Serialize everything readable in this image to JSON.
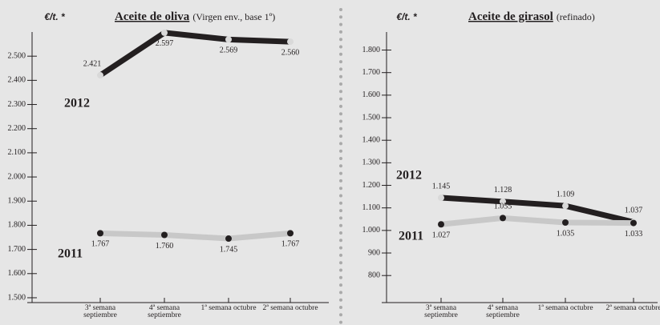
{
  "chart_data": [
    {
      "type": "line",
      "unit": "€/t. *",
      "title": "Aceite de oliva",
      "subtitle": "(Virgen env., base 1º)",
      "categories": [
        "3ª semana septiembre",
        "4ª semana septiembre",
        "1ª semana octubre",
        "2ª semana octubre"
      ],
      "ylim": [
        1480,
        2600
      ],
      "yticks": [
        {
          "value": 1500,
          "label": "1.500"
        },
        {
          "value": 1600,
          "label": "1.600"
        },
        {
          "value": 1700,
          "label": "1.700"
        },
        {
          "value": 1800,
          "label": "1.800"
        },
        {
          "value": 1900,
          "label": "1.900"
        },
        {
          "value": 2000,
          "label": "2.000"
        },
        {
          "value": 2100,
          "label": "2.100"
        },
        {
          "value": 2200,
          "label": "2.200"
        },
        {
          "value": 2300,
          "label": "2.300"
        },
        {
          "value": 2400,
          "label": "2.400"
        },
        {
          "value": 2500,
          "label": "2.500"
        }
      ],
      "series": [
        {
          "name": "2012",
          "color": "#231f20",
          "marker_color": "#d9d9d9",
          "values": [
            2421,
            2597,
            2569,
            2560
          ],
          "value_labels": [
            "2.421",
            "2.597",
            "2.569",
            "2.560"
          ]
        },
        {
          "name": "2011",
          "color": "#c8c8c8",
          "marker_color": "#231f20",
          "values": [
            1767,
            1760,
            1745,
            1767
          ],
          "value_labels": [
            "1.767",
            "1.760",
            "1.745",
            "1.767"
          ]
        }
      ]
    },
    {
      "type": "line",
      "unit": "€/t. *",
      "title": "Aceite de girasol",
      "subtitle": "(refinado)",
      "categories": [
        "3ª semana septiembre",
        "4ª semana septiembre",
        "1ª semana octubre",
        "2ª semana octubre"
      ],
      "ylim": [
        680,
        1880
      ],
      "yticks": [
        800,
        900,
        {
          "value": 1000,
          "label": "1.000"
        },
        {
          "value": 1100,
          "label": "1.100"
        },
        {
          "value": 1200,
          "label": "1.200"
        },
        {
          "value": 1300,
          "label": "1.300"
        },
        {
          "value": 1400,
          "label": "1.400"
        },
        {
          "value": 1500,
          "label": "1.500"
        },
        {
          "value": 1600,
          "label": "1.600"
        },
        {
          "value": 1700,
          "label": "1.700"
        },
        {
          "value": 1800,
          "label": "1.800"
        }
      ],
      "series": [
        {
          "name": "2012",
          "color": "#231f20",
          "marker_color": "#d9d9d9",
          "values": [
            1145,
            1128,
            1109,
            1037
          ],
          "value_labels": [
            "1.145",
            "1.128",
            "1.109",
            "1.037"
          ]
        },
        {
          "name": "2011",
          "color": "#c8c8c8",
          "marker_color": "#231f20",
          "values": [
            1027,
            1055,
            1035,
            1033
          ],
          "value_labels": [
            "1.027",
            "1.055",
            "1.035",
            "1.033"
          ]
        }
      ]
    }
  ]
}
